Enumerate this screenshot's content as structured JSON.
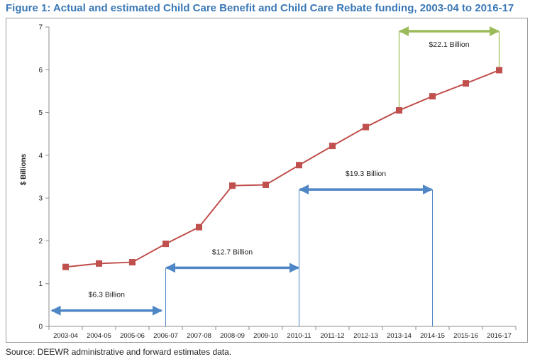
{
  "title": "Figure 1: Actual and estimated Child Care Benefit and Child Care Rebate funding, 2003-04 to 2016-17",
  "source": "Source: DEEWR administrative and forward estimates data.",
  "colors": {
    "title": "#3a78b5",
    "series": "#c0504d",
    "arrow_blue": "#4f86c6",
    "arrow_green": "#9bbb59",
    "guide_line": "#4f86c6"
  },
  "chart_data": {
    "type": "line",
    "categories": [
      "2003-04",
      "2004-05",
      "2005-06",
      "2006-07",
      "2007-08",
      "2008-09",
      "2009-10",
      "2010-11",
      "2011-12",
      "2012-13",
      "2013-14",
      "2014-15",
      "2015-16",
      "2016-17"
    ],
    "series": [
      {
        "values": [
          1.39,
          1.47,
          1.5,
          1.93,
          2.32,
          3.29,
          3.31,
          3.77,
          4.22,
          4.66,
          5.05,
          5.38,
          5.68,
          5.99
        ]
      }
    ],
    "ylabel": "$ Billions",
    "xlabel": "",
    "ylim": [
      0,
      7
    ],
    "yticks": [
      0,
      1,
      2,
      3,
      4,
      5,
      6,
      7
    ],
    "grid": false,
    "legend": "none",
    "annotations": [
      {
        "label": "$6.3 Billion",
        "from": "2003-04",
        "to": "2006-07",
        "y": 0.37,
        "style": "blue",
        "guides": false
      },
      {
        "label": "$12.7 Billion",
        "from": "2006-07",
        "to": "2010-11",
        "y": 1.37,
        "style": "blue",
        "guides": true
      },
      {
        "label": "$19.3 Billion",
        "from": "2010-11",
        "to": "2014-15",
        "y": 3.2,
        "style": "blue",
        "guides": true
      },
      {
        "label": "$22.1 Billion",
        "from": "2013-14",
        "to": "2016-17",
        "y": 6.9,
        "style": "green",
        "guides": true
      }
    ]
  }
}
